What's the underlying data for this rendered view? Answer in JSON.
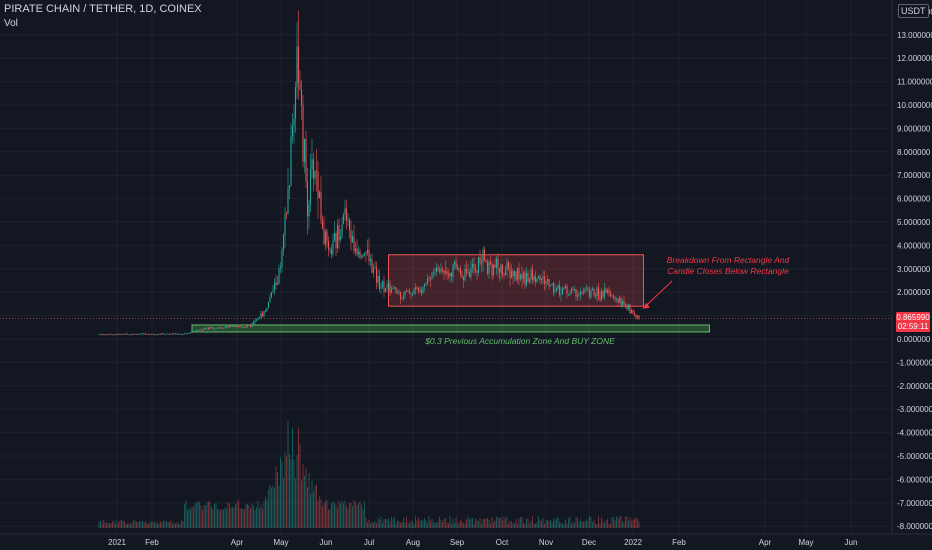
{
  "header": {
    "title": "PIRATE CHAIN / TETHER, 1D, COINEX",
    "volume_label": "Vol"
  },
  "currency_button": "USDT",
  "last_price": {
    "value": "0.865990",
    "countdown": "02:59:11",
    "color": "#f23645"
  },
  "colors": {
    "background": "#131722",
    "up": "#26a69a",
    "down": "#ef5350",
    "grid": "#1e222d",
    "axis_text": "#d1d4dc",
    "rect_fill": "rgba(239,83,80,0.22)",
    "rect_stroke": "#ef5350",
    "zone_fill": "rgba(76,175,80,0.35)",
    "zone_stroke": "#66bb6a",
    "annotation": "#f23645"
  },
  "chart_data": {
    "type": "candlestick",
    "title": "PIRATE CHAIN / TETHER, 1D, COINEX",
    "x_tick_labels": [
      "2021",
      "Feb",
      "Apr",
      "May",
      "Jun",
      "Jul",
      "Aug",
      "Sep",
      "Oct",
      "Nov",
      "Dec",
      "2022",
      "Feb",
      "Apr",
      "May",
      "Jun"
    ],
    "y_tick_labels": [
      "13.000000",
      "12.000000",
      "11.000000",
      "10.000000",
      "9.000000",
      "8.000000",
      "7.000000",
      "6.000000",
      "5.000000",
      "4.000000",
      "3.000000",
      "2.000000",
      "1.000000",
      "0.000000",
      "-1.000000",
      "-2.000000",
      "-3.000000",
      "-4.000000",
      "-5.000000",
      "-6.000000",
      "-7.000000",
      "-8.000000"
    ],
    "y_top_partial_label": "14.000000",
    "ylim": [
      -8,
      14
    ],
    "price_path": [
      {
        "date": "2020-12-20",
        "price": 0.2
      },
      {
        "date": "2021-02-15",
        "price": 0.22
      },
      {
        "date": "2021-02-28",
        "price": 0.45
      },
      {
        "date": "2021-03-31",
        "price": 0.55
      },
      {
        "date": "2021-04-10",
        "price": 1.2
      },
      {
        "date": "2021-04-20",
        "price": 3.0
      },
      {
        "date": "2021-04-25",
        "price": 6.0
      },
      {
        "date": "2021-04-30",
        "price": 11.0
      },
      {
        "date": "2021-05-01",
        "price": 13.0
      },
      {
        "date": "2021-05-04",
        "price": 9.0
      },
      {
        "date": "2021-05-08",
        "price": 6.0
      },
      {
        "date": "2021-05-13",
        "price": 7.5
      },
      {
        "date": "2021-05-18",
        "price": 5.0
      },
      {
        "date": "2021-05-22",
        "price": 3.5
      },
      {
        "date": "2021-05-27",
        "price": 4.2
      },
      {
        "date": "2021-06-01",
        "price": 5.5
      },
      {
        "date": "2021-06-08",
        "price": 4.0
      },
      {
        "date": "2021-06-15",
        "price": 3.8
      },
      {
        "date": "2021-06-23",
        "price": 2.6
      },
      {
        "date": "2021-06-30",
        "price": 2.2
      },
      {
        "date": "2021-07-10",
        "price": 1.9
      },
      {
        "date": "2021-07-20",
        "price": 2.1
      },
      {
        "date": "2021-08-01",
        "price": 2.9
      },
      {
        "date": "2021-08-15",
        "price": 3.0
      },
      {
        "date": "2021-08-25",
        "price": 2.8
      },
      {
        "date": "2021-09-01",
        "price": 3.4
      },
      {
        "date": "2021-09-10",
        "price": 3.1
      },
      {
        "date": "2021-09-25",
        "price": 2.7
      },
      {
        "date": "2021-10-10",
        "price": 2.6
      },
      {
        "date": "2021-10-20",
        "price": 2.2
      },
      {
        "date": "2021-11-01",
        "price": 2.0
      },
      {
        "date": "2021-11-20",
        "price": 1.95
      },
      {
        "date": "2021-12-01",
        "price": 1.7
      },
      {
        "date": "2021-12-10",
        "price": 1.2
      },
      {
        "date": "2021-12-15",
        "price": 0.87
      }
    ],
    "current_price": 0.86599,
    "rectangle": {
      "from": "2021-07-01",
      "to": "2021-12-18",
      "top": 3.6,
      "bottom": 1.4
    },
    "buy_zone": {
      "from": "2021-02-20",
      "to": "2022-01-31",
      "top": 0.6,
      "bottom": 0.3
    },
    "annotations": [
      {
        "text_lines": [
          "Breakdown From Rectangle And",
          "Candle Closes Below Rectangle"
        ],
        "arrow_to": {
          "date": "2021-12-15",
          "price": 1.3
        }
      },
      {
        "text": "$0.3 Previous Accumulation Zone And BUY ZONE"
      }
    ],
    "volume": {
      "label": "Vol",
      "peak_date": "2021-04-28",
      "note": "relative daily volume"
    },
    "grid": true
  }
}
